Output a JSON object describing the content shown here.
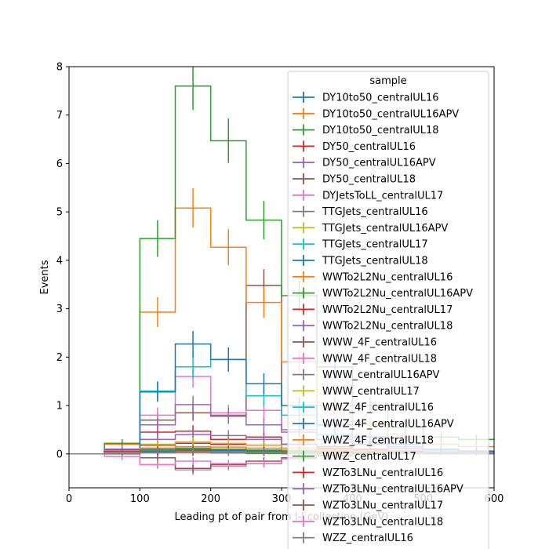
{
  "chart_data": {
    "type": "histogram-step",
    "xlabel": "Leading pt of pair from l-l collection (GeV)",
    "ylabel": "Events",
    "xlim": [
      0,
      600
    ],
    "ylim": [
      -0.7,
      8
    ],
    "xticks": [
      0,
      100,
      200,
      300,
      400,
      500,
      600
    ],
    "yticks": [
      0,
      1,
      2,
      3,
      4,
      5,
      6,
      7,
      8
    ],
    "xtick_labels": [
      "0",
      "100",
      "200",
      "300",
      "400",
      "500",
      "600"
    ],
    "ytick_labels": [
      "0",
      "1",
      "2",
      "3",
      "4",
      "5",
      "6",
      "7",
      "8"
    ],
    "legend_title": "sample",
    "legend_position": "upper-right",
    "bin_edges": [
      0,
      50,
      100,
      150,
      200,
      250,
      300,
      350,
      400,
      450,
      500,
      550,
      600
    ],
    "series": [
      {
        "name": "DY10to50_centralUL16",
        "color": "#1f77b4",
        "values": [
          0,
          0,
          0.02,
          0.03,
          0.02,
          0.01,
          0.01,
          0,
          0,
          0,
          0,
          0
        ]
      },
      {
        "name": "DY10to50_centralUL16APV",
        "color": "#ff7f0e",
        "values": [
          0,
          0,
          0.03,
          0.02,
          0.02,
          0.01,
          0,
          0,
          0,
          0,
          0,
          0
        ]
      },
      {
        "name": "DY10to50_centralUL18",
        "color": "#2ca02c",
        "values": [
          0,
          0,
          0.05,
          0.04,
          0.02,
          0.01,
          0.01,
          0,
          0,
          0,
          0,
          0
        ]
      },
      {
        "name": "DY50_centralUL16",
        "color": "#d62728",
        "values": [
          0,
          0.05,
          0.45,
          0.47,
          0.3,
          0.35,
          0.2,
          0.15,
          0.1,
          0.05,
          0.05,
          0.02
        ]
      },
      {
        "name": "DY50_centralUL16APV",
        "color": "#9467bd",
        "values": [
          0,
          0.03,
          0.3,
          0.4,
          0.38,
          0.3,
          0.2,
          0.12,
          0.08,
          0.05,
          0.03,
          0.02
        ]
      },
      {
        "name": "DY50_centralUL18",
        "color": "#8c564b",
        "values": [
          0,
          0.05,
          0.7,
          0.85,
          0.78,
          3.48,
          0.5,
          0.3,
          0.2,
          0.1,
          0.05,
          0.02
        ]
      },
      {
        "name": "DYJetsToLL_centralUL17",
        "color": "#e377c2",
        "values": [
          0,
          0.1,
          0.8,
          1.6,
          0.85,
          0.9,
          0.5,
          0.3,
          0.2,
          0.15,
          0.05,
          0.03
        ]
      },
      {
        "name": "TTGJets_centralUL16",
        "color": "#7f7f7f",
        "values": [
          0,
          0.02,
          0.05,
          0.06,
          0.05,
          0.04,
          0.03,
          0.02,
          0.01,
          0.01,
          0,
          0
        ]
      },
      {
        "name": "TTGJets_centralUL16APV",
        "color": "#bcbd22",
        "values": [
          0,
          0.02,
          0.04,
          0.05,
          0.04,
          0.03,
          0.02,
          0.02,
          0.01,
          0.01,
          0,
          0
        ]
      },
      {
        "name": "TTGJets_centralUL17",
        "color": "#17becf",
        "values": [
          0,
          0.02,
          0.06,
          0.07,
          0.06,
          0.05,
          0.04,
          0.03,
          0.02,
          0.01,
          0.01,
          0
        ]
      },
      {
        "name": "TTGJets_centralUL18",
        "color": "#1f77b4",
        "values": [
          0,
          0.03,
          0.08,
          0.09,
          0.07,
          0.06,
          0.04,
          0.03,
          0.02,
          0.01,
          0.01,
          0
        ]
      },
      {
        "name": "WWTo2L2Nu_centralUL16",
        "color": "#ff7f0e",
        "values": [
          0,
          0.2,
          2.93,
          5.08,
          4.27,
          3.13,
          1.9,
          1.0,
          0.6,
          0.35,
          0.2,
          0.15
        ]
      },
      {
        "name": "WWTo2L2Nu_centralUL16APV",
        "color": "#2ca02c",
        "values": [
          0,
          0.22,
          4.45,
          7.6,
          6.47,
          4.83,
          3.27,
          1.8,
          1.0,
          0.55,
          0.35,
          0.3
        ]
      },
      {
        "name": "WWTo2L2Nu_centralUL17",
        "color": "#d62728",
        "values": [
          0,
          0.08,
          0.18,
          0.22,
          0.2,
          0.18,
          0.12,
          0.1,
          0.08,
          0.06,
          0.05,
          0.04
        ]
      },
      {
        "name": "WWTo2L2Nu_centralUL18",
        "color": "#9467bd",
        "values": [
          0,
          0.1,
          0.6,
          1.02,
          0.8,
          0.6,
          0.45,
          0.3,
          0.2,
          0.12,
          0.08,
          0.05
        ]
      },
      {
        "name": "WWW_4F_centralUL16",
        "color": "#8c564b",
        "values": [
          0,
          0.02,
          0.05,
          0.06,
          0.05,
          0.04,
          0.03,
          0.02,
          0.01,
          0.01,
          0,
          0
        ]
      },
      {
        "name": "WWW_4F_centralUL18",
        "color": "#e377c2",
        "values": [
          0,
          -0.05,
          -0.22,
          -0.33,
          -0.25,
          -0.2,
          -0.1,
          -0.05,
          0.05,
          0.1,
          0.05,
          0.02
        ]
      },
      {
        "name": "WWW_centralUL16APV",
        "color": "#7f7f7f",
        "values": [
          0,
          0.03,
          0.1,
          0.12,
          0.1,
          0.08,
          0.05,
          0.03,
          0.02,
          0.01,
          0.01,
          0
        ]
      },
      {
        "name": "WWW_centralUL17",
        "color": "#bcbd22",
        "values": [
          0,
          0.04,
          0.2,
          0.25,
          0.22,
          0.18,
          0.12,
          0.08,
          0.05,
          0.03,
          0.02,
          0.01
        ]
      },
      {
        "name": "WWZ_4F_centralUL16",
        "color": "#17becf",
        "values": [
          0,
          0.05,
          1.3,
          1.8,
          1.95,
          1.2,
          0.8,
          0.4,
          0.25,
          0.15,
          0.08,
          0.05
        ]
      },
      {
        "name": "WWZ_4F_centralUL16APV",
        "color": "#1f77b4",
        "values": [
          0,
          0.05,
          1.28,
          2.27,
          1.95,
          1.45,
          1.0,
          0.6,
          0.35,
          0.2,
          0.1,
          0.06
        ]
      },
      {
        "name": "WWZ_4F_centralUL18",
        "color": "#ff7f0e",
        "values": [
          0,
          0.03,
          0.12,
          0.15,
          0.14,
          0.12,
          0.08,
          0.06,
          0.04,
          0.03,
          0.02,
          0.01
        ]
      },
      {
        "name": "WWZ_centralUL17",
        "color": "#2ca02c",
        "values": [
          0,
          0.02,
          0.08,
          0.1,
          0.09,
          0.08,
          0.06,
          0.05,
          0.04,
          0.03,
          0.02,
          0.01
        ]
      },
      {
        "name": "WZTo3LNu_centralUL16",
        "color": "#d62728",
        "values": [
          0,
          0.02,
          0.05,
          0.06,
          0.05,
          0.04,
          0.03,
          0.02,
          0.02,
          0.01,
          0.01,
          0
        ]
      },
      {
        "name": "WZTo3LNu_centralUL16APV",
        "color": "#9467bd",
        "values": [
          0,
          0.02,
          0.04,
          0.05,
          0.05,
          0.04,
          0.03,
          0.02,
          0.01,
          0.01,
          0,
          0
        ]
      },
      {
        "name": "WZTo3LNu_centralUL17",
        "color": "#8c564b",
        "values": [
          0,
          0.0,
          -0.08,
          -0.3,
          -0.22,
          -0.15,
          -0.08,
          -0.03,
          0,
          0,
          0,
          0
        ]
      },
      {
        "name": "WZTo3LNu_centralUL18",
        "color": "#e377c2",
        "values": [
          0,
          0.02,
          -0.22,
          -0.15,
          -0.2,
          -0.2,
          -0.1,
          -0.05,
          0,
          0,
          0,
          0
        ]
      },
      {
        "name": "WZZ_centralUL16",
        "color": "#7f7f7f",
        "values": [
          0,
          0.01,
          0.03,
          0.04,
          0.03,
          0.03,
          0.02,
          0.02,
          0.01,
          0.01,
          0,
          0
        ]
      }
    ]
  }
}
